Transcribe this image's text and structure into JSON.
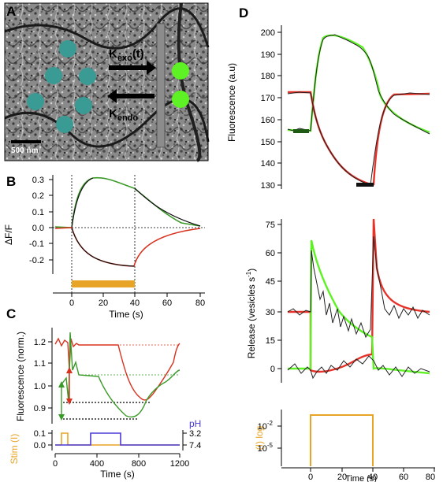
{
  "panels": {
    "A": {
      "label": "A",
      "scale_bar": "500 nm",
      "k_exo": "K",
      "k_exo_sub": "exo",
      "k_exo_suffix": "(t)",
      "k_endo": "K",
      "k_endo_sub": "endo",
      "colors": {
        "vesicle": "#3a9a94",
        "surface": "#5ef225",
        "membrane": "#8c8c8c"
      }
    },
    "B": {
      "label": "B",
      "ylabel": "ΔF/F",
      "xlabel": "Time (s)",
      "yticks": [
        "0.3",
        "0.2",
        "0.1",
        "0.0",
        "-0.1",
        "-0.2"
      ],
      "xticks": [
        "0",
        "20",
        "40",
        "60",
        "80"
      ]
    },
    "C": {
      "label": "C",
      "ylabel": "Fluorescence (norm.)",
      "yticks": [
        "1.2",
        "1.1",
        "1.0",
        "0.9"
      ],
      "stim_label": "Stim (I)",
      "stim_ticks": [
        "0.1",
        "0.0"
      ],
      "ph_label": "pH",
      "ph_ticks": [
        "3.2",
        "7.4"
      ],
      "xlabel": "Time (s)",
      "xticks": [
        "0",
        "400",
        "800",
        "1200"
      ]
    },
    "D": {
      "label": "D",
      "top_ylabel": "Fluorescence (a.u)",
      "top_yticks": [
        "200",
        "190",
        "180",
        "170",
        "160",
        "150",
        "140",
        "130"
      ],
      "mid_ylabel": "Release (vesicles s",
      "mid_ylabel_sup": "-1",
      "mid_ylabel_end": ")",
      "mid_yticks": [
        "75",
        "60",
        "45",
        "30",
        "15",
        "0"
      ],
      "bot_ylabel": "(I) log",
      "bot_yticks": [
        "10",
        "10"
      ],
      "bot_yticks_exp": [
        "-2",
        "-5"
      ],
      "xlabel": "Time (s)",
      "xticks": [
        "0",
        "20",
        "40",
        "60",
        "80"
      ]
    }
  },
  "colors": {
    "green": "#3a9a28",
    "red": "#d8321e",
    "orange": "#e8a426",
    "blue": "#4a3ad8",
    "black": "#111111"
  }
}
